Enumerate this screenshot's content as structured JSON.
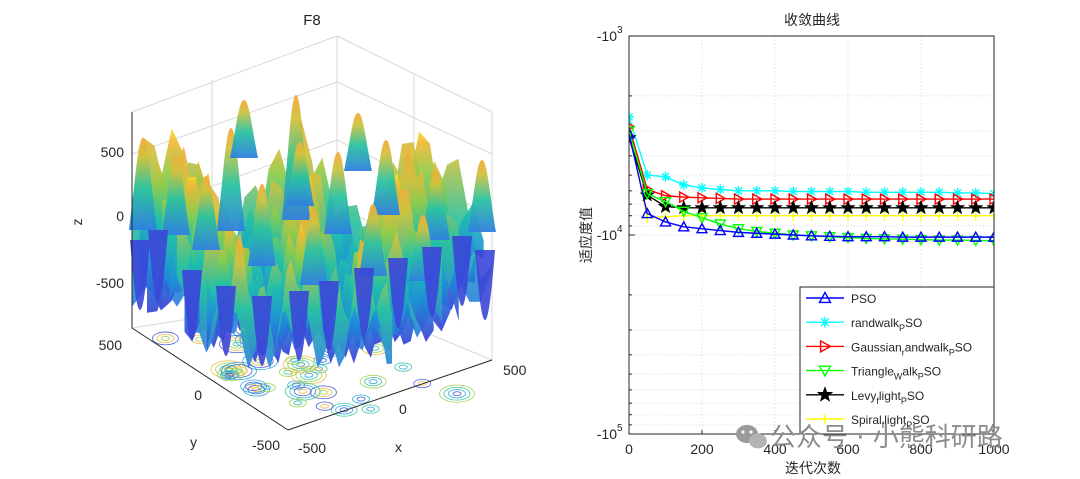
{
  "chart_data": [
    {
      "type": "surface3d",
      "title": "F8",
      "xlabel": "x",
      "ylabel": "y",
      "zlabel": "z",
      "xticks": [
        "-500",
        "0",
        "500"
      ],
      "yticks": [
        "-500",
        "0",
        "500"
      ],
      "zticks": [
        "500",
        "0",
        "-500"
      ],
      "xlim": [
        -500,
        500
      ],
      "ylim": [
        -500,
        500
      ],
      "zlim": [
        -840,
        840
      ],
      "contour_on_floor": true
    },
    {
      "type": "line",
      "title": "收敛曲线",
      "xlabel": "迭代次数",
      "ylabel": "适应度值",
      "xlim": [
        0,
        1000
      ],
      "xticks": [
        "0",
        "200",
        "400",
        "600",
        "800",
        "1000"
      ],
      "yscale": "log-negative",
      "ylim": [
        -1000,
        -100000
      ],
      "yticks": [
        "-10",
        "-10",
        "-10"
      ],
      "ytick_exponents": [
        "3",
        "4",
        "5"
      ],
      "grid": true,
      "legend_position": "bottom-right",
      "x": [
        0,
        50,
        100,
        150,
        200,
        250,
        300,
        350,
        400,
        450,
        500,
        550,
        600,
        650,
        700,
        750,
        800,
        850,
        900,
        950,
        1000
      ],
      "series": [
        {
          "name": "PSO",
          "label_parts": [
            "PSO"
          ],
          "color": "#0000ff",
          "marker": "triangle-up",
          "values": [
            -3100,
            -7800,
            -8600,
            -9100,
            -9300,
            -9500,
            -9700,
            -9800,
            -9900,
            -10000,
            -10100,
            -10150,
            -10200,
            -10200,
            -10200,
            -10250,
            -10250,
            -10250,
            -10250,
            -10250,
            -10250
          ]
        },
        {
          "name": "randwalk_PSO",
          "label_parts": [
            "randwalk",
            "P",
            "SO"
          ],
          "color": "#00ffff",
          "marker": "asterisk",
          "values": [
            -2550,
            -5000,
            -5100,
            -5600,
            -5800,
            -5900,
            -6000,
            -6000,
            -6000,
            -6050,
            -6050,
            -6050,
            -6050,
            -6100,
            -6100,
            -6100,
            -6100,
            -6100,
            -6150,
            -6150,
            -6200
          ]
        },
        {
          "name": "Gaussian_randwalk_PSO",
          "label_parts": [
            "Gaussian",
            "r",
            "andwalk",
            "P",
            "SO"
          ],
          "color": "#ff0000",
          "marker": "triangle-right",
          "values": [
            -2850,
            -5900,
            -6350,
            -6450,
            -6500,
            -6550,
            -6600,
            -6600,
            -6600,
            -6600,
            -6600,
            -6600,
            -6600,
            -6600,
            -6600,
            -6600,
            -6600,
            -6600,
            -6600,
            -6600,
            -6600
          ]
        },
        {
          "name": "Triangle_Walk_PSO",
          "label_parts": [
            "Triangle",
            "W",
            "alk",
            "P",
            "SO"
          ],
          "color": "#00ff00",
          "marker": "triangle-down",
          "values": [
            -3000,
            -6200,
            -6800,
            -7600,
            -8200,
            -8800,
            -9300,
            -9600,
            -9800,
            -10000,
            -10100,
            -10200,
            -10300,
            -10400,
            -10450,
            -10500,
            -10550,
            -10600,
            -10600,
            -10650,
            -10700
          ]
        },
        {
          "name": "Levy_flight_PSO",
          "label_parts": [
            "Levy",
            "f",
            "light",
            "P",
            "SO"
          ],
          "color": "#000000",
          "marker": "star",
          "values": [
            -3250,
            -6300,
            -7200,
            -7300,
            -7300,
            -7300,
            -7300,
            -7300,
            -7300,
            -7300,
            -7300,
            -7300,
            -7300,
            -7300,
            -7300,
            -7300,
            -7300,
            -7300,
            -7300,
            -7300,
            -7300
          ]
        },
        {
          "name": "Spiral_flight_PSO",
          "label_parts": [
            "Spiral",
            "f",
            "light",
            "P",
            "SO"
          ],
          "color": "#ffff00",
          "marker": "plus",
          "values": [
            -3000,
            -8200,
            -8100,
            -8000,
            -8000,
            -8000,
            -8000,
            -8000,
            -8000,
            -8000,
            -8000,
            -8000,
            -8000,
            -8000,
            -8000,
            -8000,
            -8000,
            -8000,
            -8000,
            -8000,
            -8000
          ]
        }
      ]
    }
  ],
  "watermark": "公众号 · 小熊科研路",
  "watermark_icon": "wechat-icon"
}
